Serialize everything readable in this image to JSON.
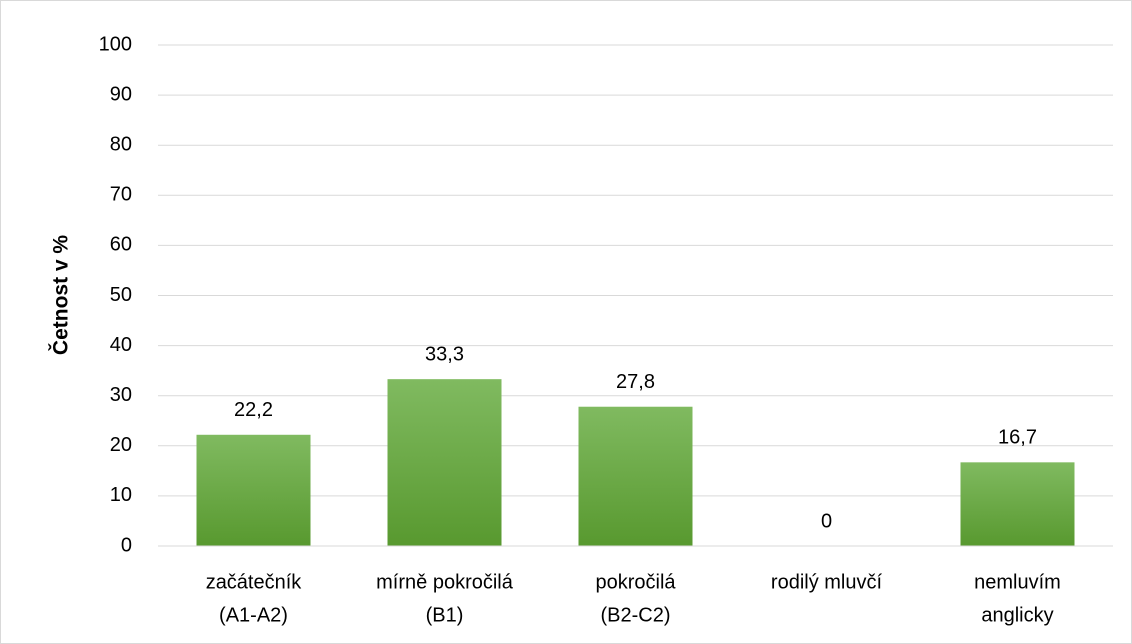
{
  "chart_data": {
    "type": "bar",
    "y_axis_label": "Četnost v %",
    "categories": [
      [
        "začátečník",
        "(A1-A2)"
      ],
      [
        "mírně pokročilá",
        "(B1)"
      ],
      [
        "pokročilá",
        "(B2-C2)"
      ],
      [
        "rodilý mluvčí"
      ],
      [
        "nemluvím",
        "anglicky"
      ]
    ],
    "values": [
      22.2,
      33.3,
      27.8,
      0,
      16.7
    ],
    "value_labels": [
      "22,2",
      "33,3",
      "27,8",
      "0",
      "16,7"
    ],
    "color": "#6aa84f",
    "ylim": [
      0,
      100
    ],
    "yticks": [
      0,
      10,
      20,
      30,
      40,
      50,
      60,
      70,
      80,
      90,
      100
    ],
    "grid": true
  }
}
